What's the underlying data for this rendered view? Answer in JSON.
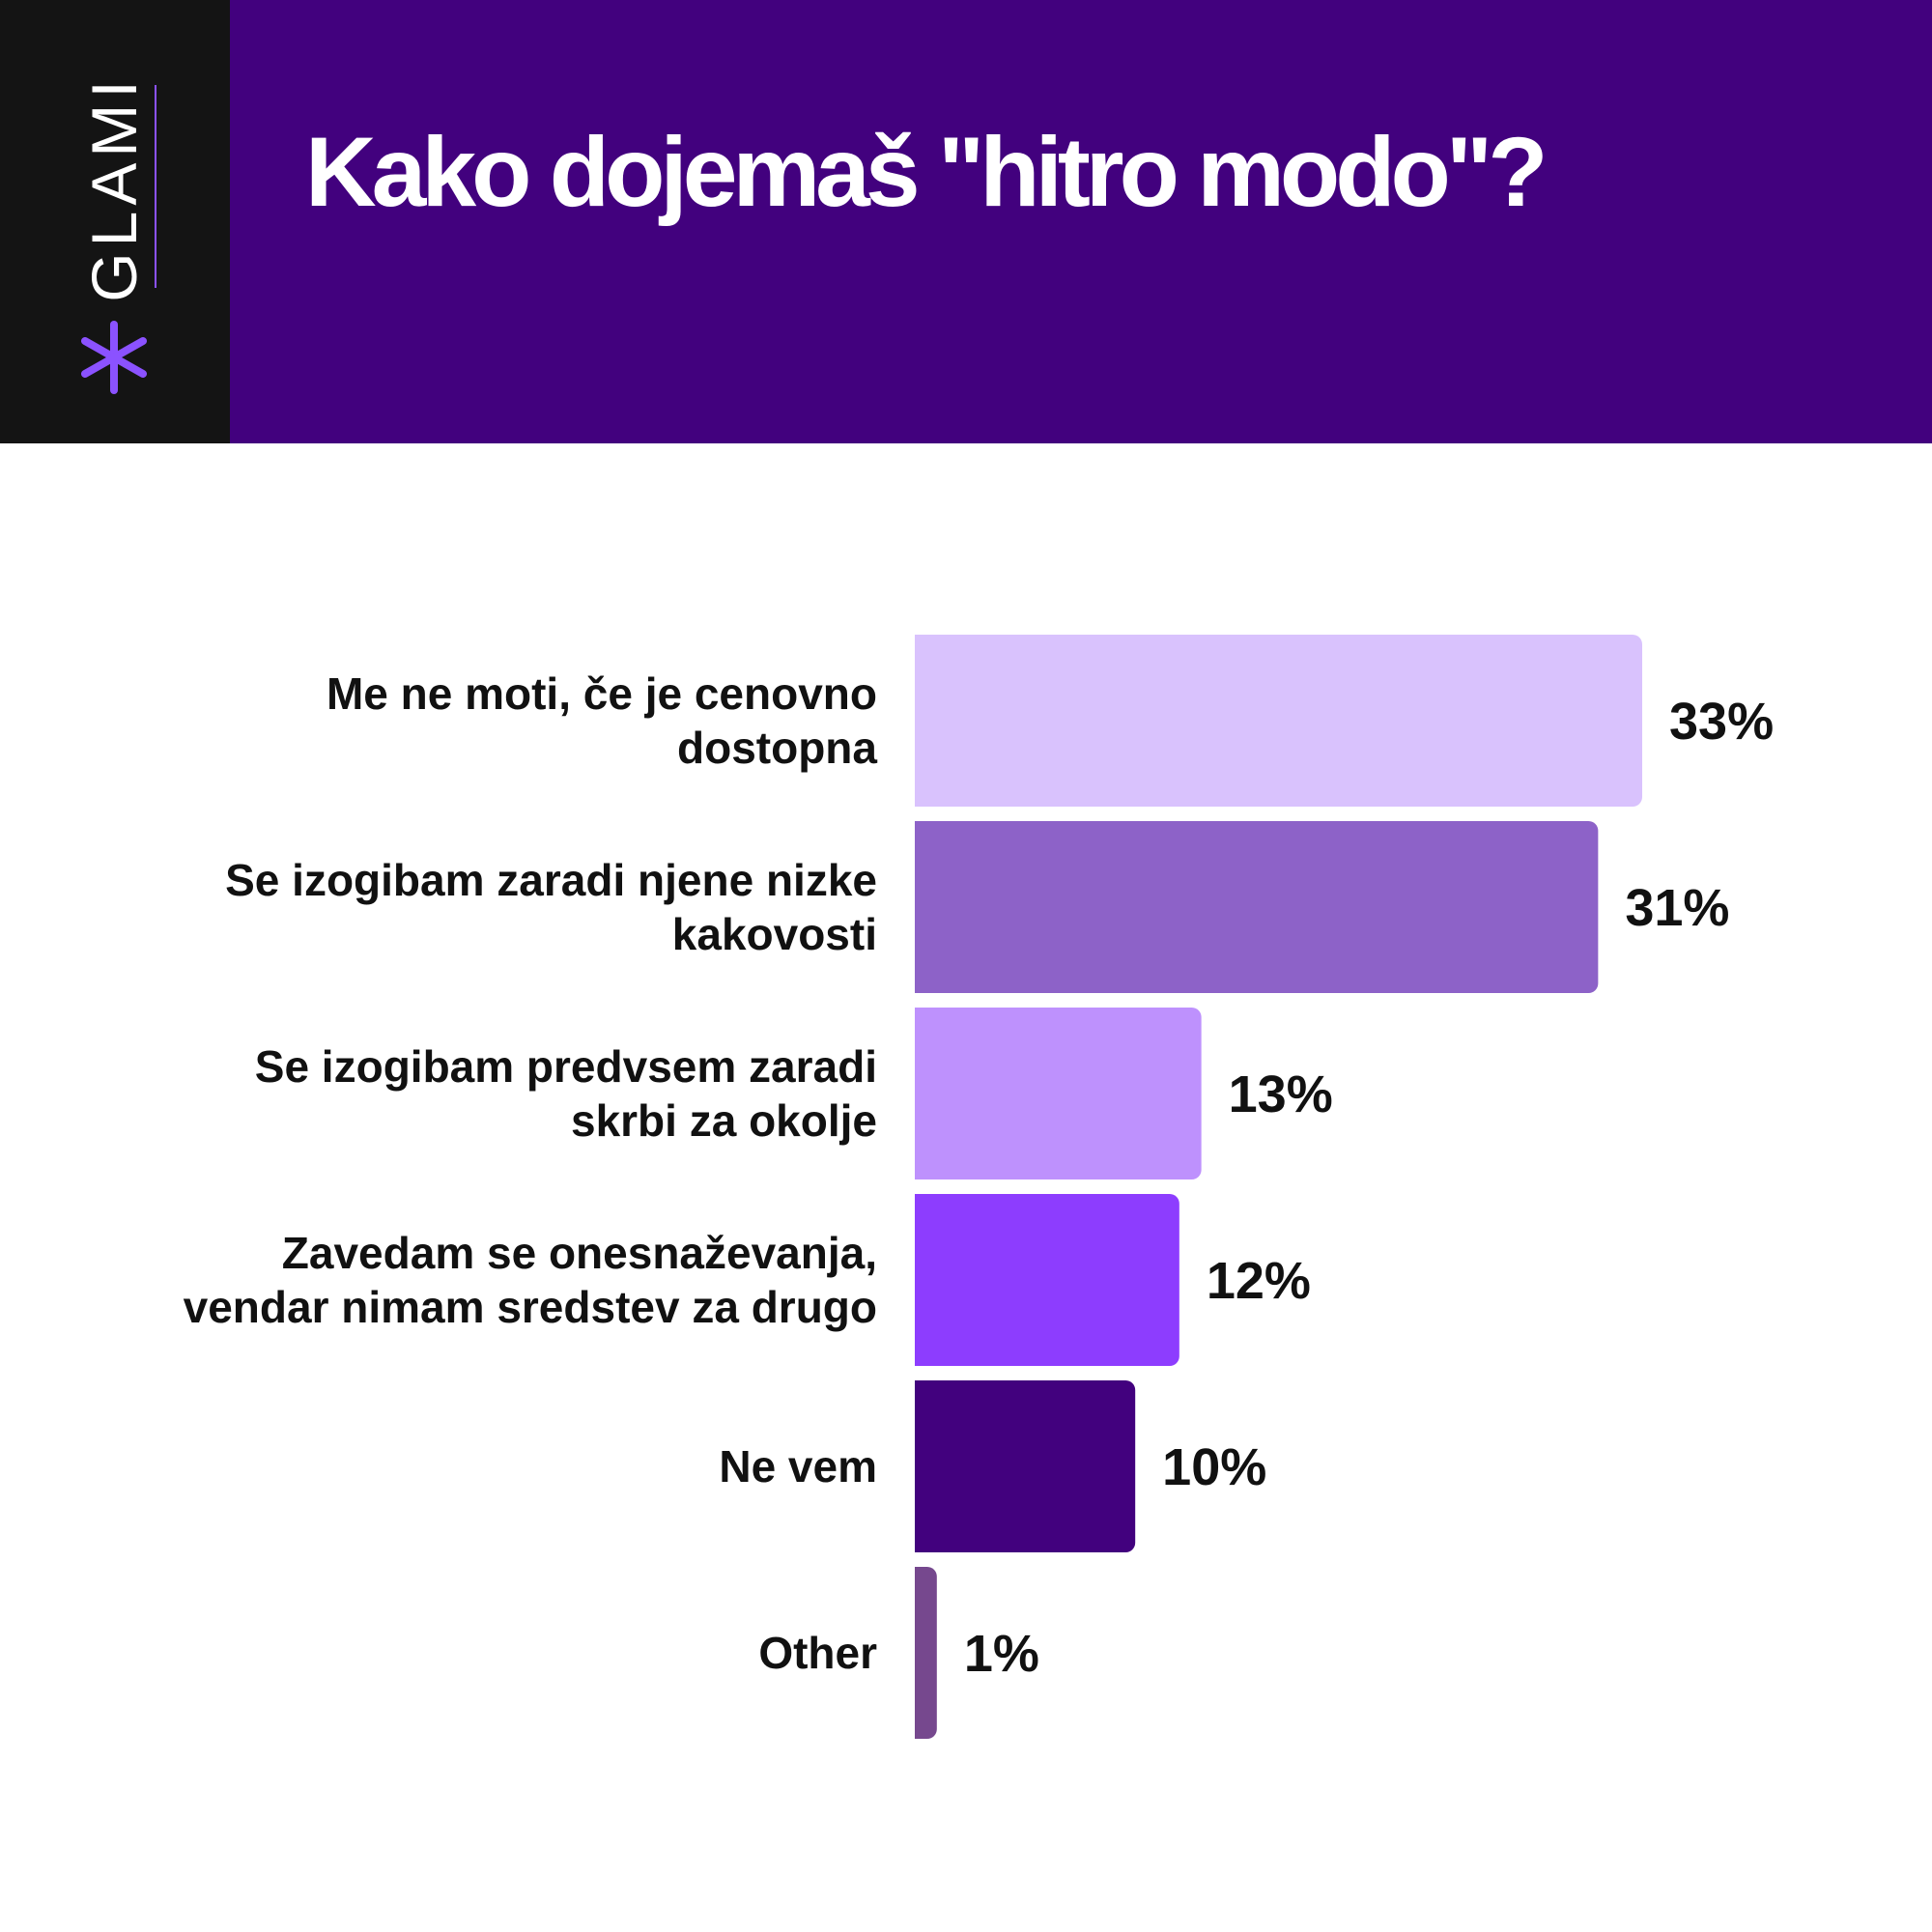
{
  "brand": {
    "name": "GLAMI",
    "accent_color": "#8b52ff",
    "icon": "asterisk-icon"
  },
  "header": {
    "title": "Kako dojemaš \"hitro modo\"?",
    "background_color": "#42017e"
  },
  "chart_data": {
    "type": "bar",
    "orientation": "horizontal",
    "title": "Kako dojemaš \"hitro modo\"?",
    "categories": [
      [
        "Me ne moti, če je cenovno",
        "dostopna"
      ],
      [
        "Se izogibam zaradi njene nizke",
        "kakovosti"
      ],
      [
        "Se izogibam predvsem zaradi",
        "skrbi za okolje"
      ],
      [
        "Zavedam se onesnaževanja,",
        "vendar nimam sredstev za drugo"
      ],
      [
        "Ne vem"
      ],
      [
        "Other"
      ]
    ],
    "values": [
      33,
      31,
      13,
      12,
      10,
      1
    ],
    "value_labels": [
      "33%",
      "31%",
      "13%",
      "12%",
      "10%",
      "1%"
    ],
    "colors": [
      "#d9c2fd",
      "#8d62c8",
      "#be91fd",
      "#8d3dfe",
      "#42017e",
      "#76488e"
    ],
    "xlim": [
      0,
      33
    ],
    "grid": false,
    "legend": "none"
  }
}
